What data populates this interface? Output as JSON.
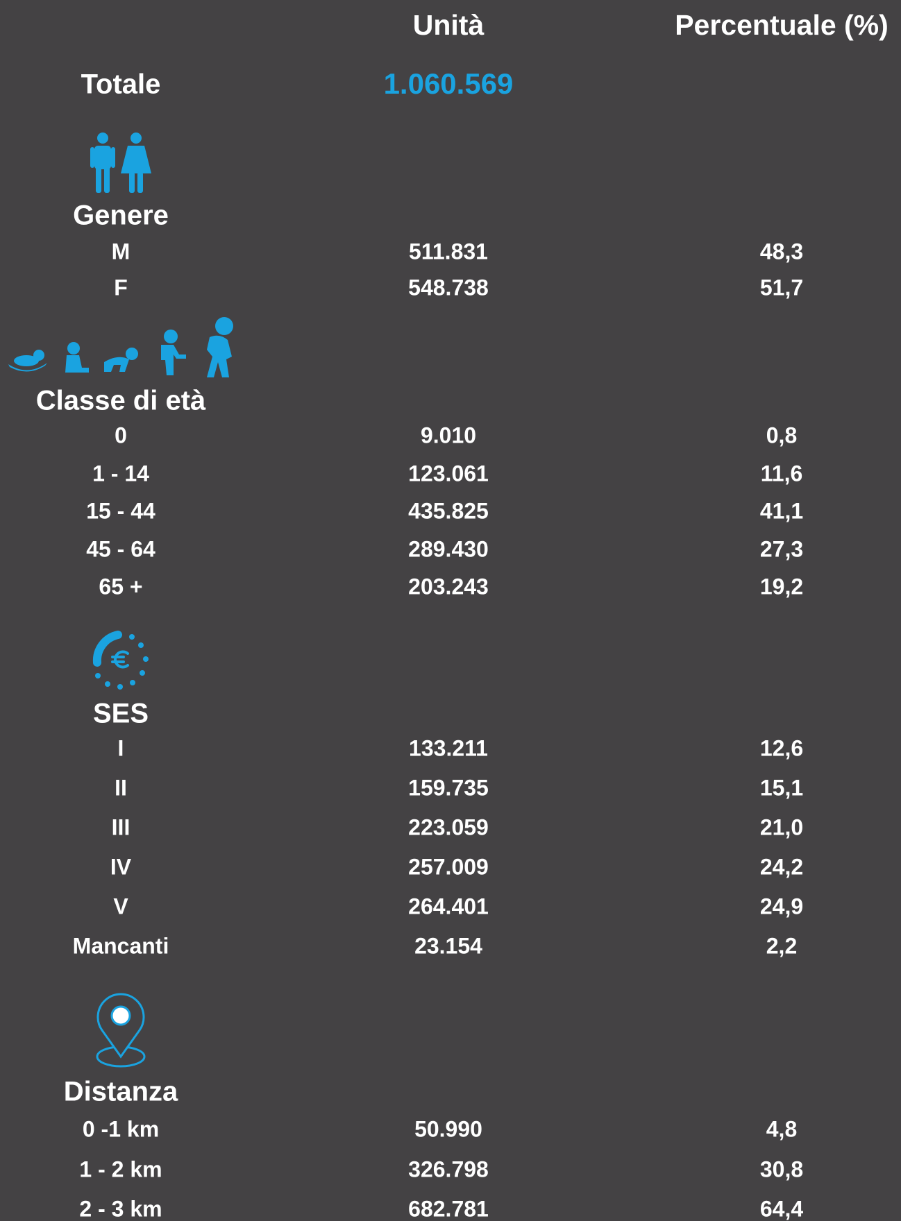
{
  "header": {
    "unit": "Unità",
    "percent": "Percentuale (%)"
  },
  "total": {
    "label": "Totale",
    "value": "1.060.569"
  },
  "sections": [
    {
      "title": "Genere",
      "rows": [
        [
          "M",
          "511.831",
          "48,3"
        ],
        [
          "F",
          "548.738",
          "51,7"
        ]
      ]
    },
    {
      "title": "Classe di età",
      "rows": [
        [
          "0",
          "9.010",
          "0,8"
        ],
        [
          "1 - 14",
          "123.061",
          "11,6"
        ],
        [
          "15 - 44",
          "435.825",
          "41,1"
        ],
        [
          "45 - 64",
          "289.430",
          "27,3"
        ],
        [
          "65 +",
          "203.243",
          "19,2"
        ]
      ]
    },
    {
      "title": "SES",
      "rows": [
        [
          "I",
          "133.211",
          "12,6"
        ],
        [
          "II",
          "159.735",
          "15,1"
        ],
        [
          "III",
          "223.059",
          "21,0"
        ],
        [
          "IV",
          "257.009",
          "24,2"
        ],
        [
          "V",
          "264.401",
          "24,9"
        ],
        [
          "Mancanti",
          "23.154",
          "2,2"
        ]
      ]
    },
    {
      "title": "Distanza",
      "rows": [
        [
          "0 -1 km",
          "50.990",
          "4,8"
        ],
        [
          "1 - 2 km",
          "326.798",
          "30,8"
        ],
        [
          "2 - 3 km",
          "682.781",
          "64,4"
        ]
      ]
    }
  ]
}
